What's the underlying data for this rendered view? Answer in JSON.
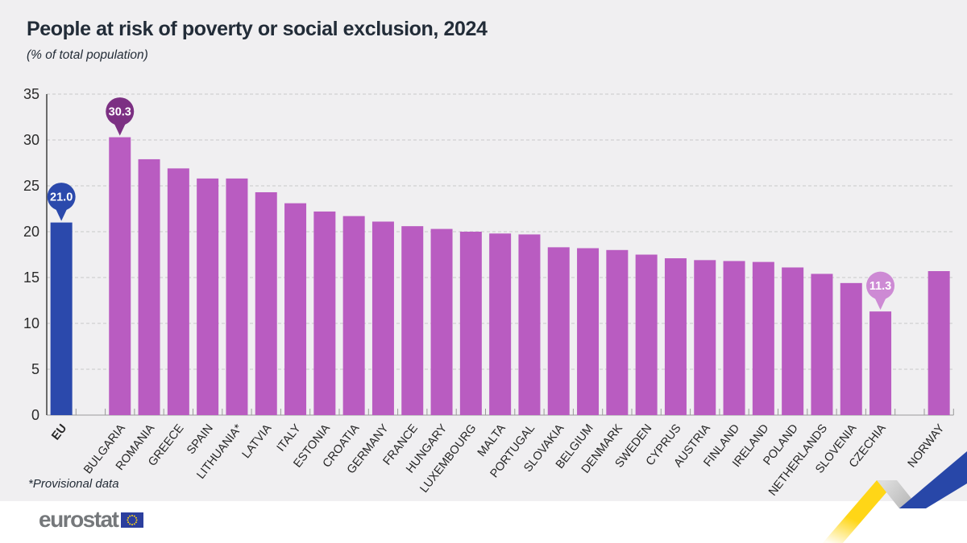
{
  "page": {
    "title": "People at risk of poverty or social exclusion, 2024",
    "subtitle": "(% of total population)",
    "footnote": "*Provisional data",
    "background_color": "#f0eff1",
    "footer_background_color": "#ffffff"
  },
  "logo": {
    "text": "eurostat",
    "text_color": "#75787b",
    "flag_blue": "#2c3f9e",
    "flag_star_yellow": "#ffd617"
  },
  "decor_ribbon": {
    "yellow": "#ffd617",
    "gray_light": "#dedede",
    "gray_dark": "#b3b3b3",
    "blue": "#2847a8"
  },
  "chart_data": {
    "type": "bar",
    "title": "People at risk of poverty or social exclusion, 2024",
    "subtitle": "(% of total population)",
    "xlabel": "",
    "ylabel": "% of total population",
    "ylim": [
      0,
      35
    ],
    "yticks": [
      0,
      5,
      10,
      15,
      20,
      25,
      30,
      35
    ],
    "grid": "horizontal-dashed",
    "legend": "none",
    "categories": [
      "EU",
      "BULGARIA",
      "ROMANIA",
      "GREECE",
      "SPAIN",
      "LITHUANIA*",
      "LATVIA",
      "ITALY",
      "ESTONIA",
      "CROATIA",
      "GERMANY",
      "FRANCE",
      "HUNGARY",
      "LUXEMBOURG",
      "MALTA",
      "PORTUGAL",
      "SLOVAKIA",
      "BELGIUM",
      "DENMARK",
      "SWEDEN",
      "CYPRUS",
      "AUSTRIA",
      "FINLAND",
      "IRELAND",
      "POLAND",
      "NETHERLANDS",
      "SLOVENIA",
      "CZECHIA",
      "NORWAY"
    ],
    "values": [
      21.0,
      30.3,
      27.9,
      26.9,
      25.8,
      25.8,
      24.3,
      23.1,
      22.2,
      21.7,
      21.1,
      20.6,
      20.3,
      20.0,
      19.8,
      19.7,
      18.3,
      18.2,
      18.0,
      17.5,
      17.1,
      16.9,
      16.8,
      16.7,
      16.1,
      15.4,
      14.4,
      11.3,
      15.7
    ],
    "labeled_values_only": [
      "EU: 21.0",
      "BULGARIA: 30.3",
      "CZECHIA: 11.3"
    ],
    "bar_color_default": "#b95cc1",
    "bar_color_eu": "#2b49ac",
    "separators_before": [
      "BULGARIA",
      "NORWAY"
    ],
    "bold_categories": [
      "EU"
    ],
    "callouts": [
      {
        "category": "EU",
        "text": "21.0",
        "bubble_color": "#2b49ac",
        "text_color": "#ffffff"
      },
      {
        "category": "BULGARIA",
        "text": "30.3",
        "bubble_color": "#7c3083",
        "text_color": "#ffffff"
      },
      {
        "category": "CZECHIA",
        "text": "11.3",
        "bubble_color": "#cd8ad4",
        "text_color": "#ffffff"
      }
    ],
    "footnote": "*Provisional data",
    "axis_color": "#4a4a4a",
    "gridline_color": "#c9c9c9",
    "tick_label_color": "#2b2b2b"
  }
}
